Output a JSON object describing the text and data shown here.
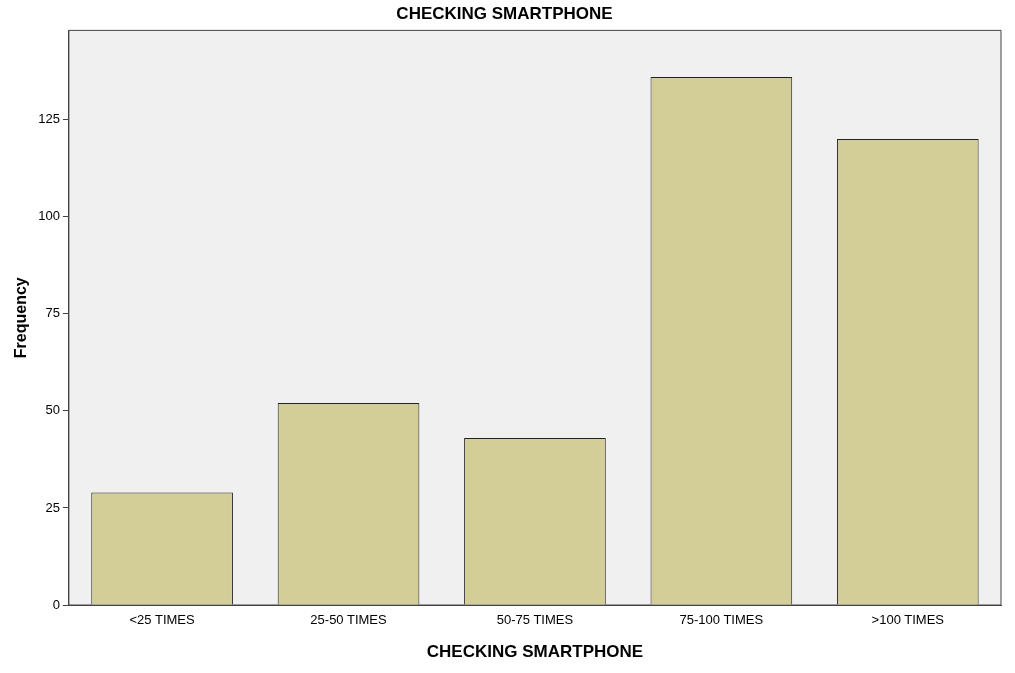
{
  "chart_data": {
    "type": "bar",
    "title": "CHECKING SMARTPHONE",
    "xlabel": "CHECKING SMARTPHONE",
    "ylabel": "Frequency",
    "categories": [
      "<25 TIMES",
      "25-50 TIMES",
      "50-75 TIMES",
      "75-100 TIMES",
      ">100 TIMES"
    ],
    "values": [
      29,
      52,
      43,
      136,
      120
    ],
    "color": "#d3ce97",
    "ylim": [
      0,
      148
    ],
    "yticks": [
      0,
      25,
      50,
      75,
      100,
      125
    ],
    "grid": false,
    "legend": false
  }
}
